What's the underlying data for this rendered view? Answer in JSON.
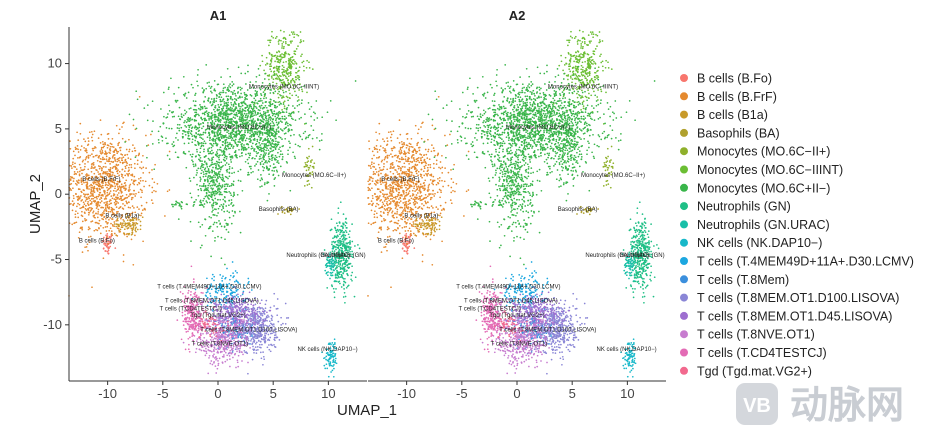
{
  "chart_data": {
    "type": "scatter",
    "xlabel": "UMAP_1",
    "ylabel": "UMAP_2",
    "xlim": [
      -13.5,
      13.5
    ],
    "ylim": [
      -14.3,
      12.8
    ],
    "x_ticks": [
      -10,
      -5,
      0,
      5,
      10
    ],
    "y_ticks": [
      10,
      5,
      0,
      -5,
      -10
    ],
    "panels": [
      {
        "title": "A1"
      },
      {
        "title": "A2"
      }
    ],
    "legend": [
      {
        "label": "B cells (B.Fo)",
        "color": "#F8766D"
      },
      {
        "label": "B cells (B.FrF)",
        "color": "#E58A2F"
      },
      {
        "label": "B cells (B1a)",
        "color": "#C89A2A"
      },
      {
        "label": "Basophils (BA)",
        "color": "#B0A12E"
      },
      {
        "label": "Monocytes (MO.6C−II+)",
        "color": "#8FB02B"
      },
      {
        "label": "Monocytes (MO.6C−IIINT)",
        "color": "#6BBE33"
      },
      {
        "label": "Monocytes (MO.6C+II−)",
        "color": "#39B54A"
      },
      {
        "label": "Neutrophils (GN)",
        "color": "#1FBF86"
      },
      {
        "label": "Neutrophils (GN.URAC)",
        "color": "#18BFA8"
      },
      {
        "label": "NK cells (NK.DAP10−)",
        "color": "#17B8C9"
      },
      {
        "label": "T cells (T.4MEM49D+11A+.D30.LCMV)",
        "color": "#1CA7E0"
      },
      {
        "label": "T cells (T.8Mem)",
        "color": "#3B8FDD"
      },
      {
        "label": "T cells (T.8MEM.OT1.D100.LISOVA)",
        "color": "#8A86D6"
      },
      {
        "label": "T cells (T.8MEM.OT1.D45.LISOVA)",
        "color": "#9E6FD0"
      },
      {
        "label": "T cells (T.8NVE.OT1)",
        "color": "#C77CCF"
      },
      {
        "label": "T cells (T.CD4TESTCJ)",
        "color": "#E36BB5"
      },
      {
        "label": "Tgd (Tgd.mat.VG2+)",
        "color": "#F2698E"
      }
    ],
    "clusters": [
      {
        "name": "B cells (B.Fo)",
        "color": "#F8766D",
        "cx": -10.0,
        "cy": -3.8,
        "sx": 0.25,
        "sy": 0.45,
        "n": 50
      },
      {
        "name": "B cells (B.FrF)",
        "color": "#E58A2F",
        "cx": -10.4,
        "cy": 0.6,
        "sx": 2.0,
        "sy": 2.0,
        "n": 1100
      },
      {
        "name": "B cells (B1a)",
        "color": "#C89A2A",
        "cx": -8.0,
        "cy": -2.3,
        "sx": 0.6,
        "sy": 0.35,
        "n": 90
      },
      {
        "name": "Basophils (BA)",
        "color": "#B0A12E",
        "cx": 6.4,
        "cy": -1.2,
        "sx": 0.3,
        "sy": 0.15,
        "n": 30
      },
      {
        "name": "Monocytes (MO.6C-II+)",
        "color": "#8FB02B",
        "cx": 8.3,
        "cy": 2.1,
        "sx": 0.25,
        "sy": 0.6,
        "n": 40
      },
      {
        "name": "Monocytes (MO.6C-IIINT)",
        "color": "#6BBE33",
        "cx": 6.0,
        "cy": 9.7,
        "sx": 0.9,
        "sy": 1.5,
        "n": 350
      },
      {
        "name": "Monocytes (MO.6C+II-)",
        "color": "#39B54A",
        "cx": 1.6,
        "cy": 5.4,
        "sx": 3.0,
        "sy": 1.5,
        "n": 1600
      },
      {
        "name": "Monocytes (MO.6C+II-) stem",
        "color": "#39B54A",
        "cx": -0.3,
        "cy": 0.6,
        "sx": 0.9,
        "sy": 1.7,
        "n": 420
      },
      {
        "name": "Monocytes (MO.6C+II-) bridge",
        "color": "#39B54A",
        "cx": 4.6,
        "cy": 3.5,
        "sx": 0.6,
        "sy": 1.5,
        "n": 200
      },
      {
        "name": "Neutrophils (GN)",
        "color": "#1FBF86",
        "cx": 11.2,
        "cy": -4.6,
        "sx": 0.5,
        "sy": 1.3,
        "n": 380
      },
      {
        "name": "Neutrophils (GN.URAC)",
        "color": "#18BFA8",
        "cx": 10.2,
        "cy": -5.3,
        "sx": 0.25,
        "sy": 0.45,
        "n": 70
      },
      {
        "name": "NK cells (NK.DAP10-)",
        "color": "#17B8C9",
        "cx": 10.3,
        "cy": -12.3,
        "sx": 0.3,
        "sy": 0.6,
        "n": 90
      },
      {
        "name": "T cells (T.4MEM49D+11A+.D30.LCMV)",
        "color": "#1CA7E0",
        "cx": 0.6,
        "cy": -7.5,
        "sx": 1.0,
        "sy": 0.7,
        "n": 180
      },
      {
        "name": "T cells (T.8Mem)",
        "color": "#3B8FDD",
        "cx": 1.4,
        "cy": -10.4,
        "sx": 0.8,
        "sy": 0.6,
        "n": 140
      },
      {
        "name": "T cells (T.8MEM.OT1.D100.LISOVA)",
        "color": "#8A86D6",
        "cx": 3.4,
        "cy": -10.2,
        "sx": 1.0,
        "sy": 1.0,
        "n": 500
      },
      {
        "name": "T cells (T.8MEM.OT1.D45.LISOVA)",
        "color": "#9E6FD0",
        "cx": 1.3,
        "cy": -8.9,
        "sx": 1.3,
        "sy": 0.6,
        "n": 280
      },
      {
        "name": "T cells (T.8NVE.OT1)",
        "color": "#C77CCF",
        "cx": 0.4,
        "cy": -11.2,
        "sx": 1.2,
        "sy": 0.9,
        "n": 420
      },
      {
        "name": "T cells (T.CD4TESTCJ)",
        "color": "#E36BB5",
        "cx": -2.2,
        "cy": -9.3,
        "sx": 0.5,
        "sy": 1.0,
        "n": 260
      },
      {
        "name": "Tgd (Tgd.mat.VG2+)",
        "color": "#F2698E",
        "cx": -0.7,
        "cy": -10.0,
        "sx": 0.5,
        "sy": 0.5,
        "n": 60
      },
      {
        "name": "Monocytes (MO.6C+II-) strays",
        "color": "#39B54A",
        "cx": -3.5,
        "cy": -0.8,
        "sx": 0.4,
        "sy": 0.15,
        "n": 20
      }
    ],
    "cluster_labels": [
      {
        "text": "Monocytes (MO.6C−IIINT)",
        "x": 2.8,
        "y": 8.1
      },
      {
        "text": "Monocytes (MO.6C+II−)",
        "x": -1.0,
        "y": 5.0
      },
      {
        "text": "Monocytes (MO.6C−II+)",
        "x": 5.8,
        "y": 1.3
      },
      {
        "text": "B cells (B.FrF)",
        "x": -12.3,
        "y": 1.0
      },
      {
        "text": "B cells (B1a)",
        "x": -10.2,
        "y": -1.8
      },
      {
        "text": "Basophils (BA)",
        "x": 3.7,
        "y": -1.3
      },
      {
        "text": "B cells (B.Fo)",
        "x": -12.6,
        "y": -3.7
      },
      {
        "text": "Neutrophils (GN.URAC)",
        "x": 6.2,
        "y": -4.8
      },
      {
        "text": "Neutrophils (GN)",
        "x": 9.3,
        "y": -4.8
      },
      {
        "text": "T cells (T.4MEM49D+11A+.D30.LCMV)",
        "x": -5.5,
        "y": -7.2
      },
      {
        "text": "T cells (T.8MEM.OT1.D45.LISOVA)",
        "x": -4.8,
        "y": -8.3
      },
      {
        "text": "T cells (T.CD4TESTCJ)",
        "x": -5.3,
        "y": -8.9
      },
      {
        "text": "Tgd (Tgd.mat.VG2+)",
        "x": -2.5,
        "y": -9.4
      },
      {
        "text": "T cells (T.8MEM.OT1.D100.LISOVA)",
        "x": -1.6,
        "y": -10.5
      },
      {
        "text": "T cells (T.8NVE.OT1)",
        "x": -2.4,
        "y": -11.6
      },
      {
        "text": "NK cells (NK.DAP10−)",
        "x": 7.2,
        "y": -12.0
      }
    ]
  },
  "watermark": {
    "logo_text": "VB",
    "text": "动脉网"
  }
}
